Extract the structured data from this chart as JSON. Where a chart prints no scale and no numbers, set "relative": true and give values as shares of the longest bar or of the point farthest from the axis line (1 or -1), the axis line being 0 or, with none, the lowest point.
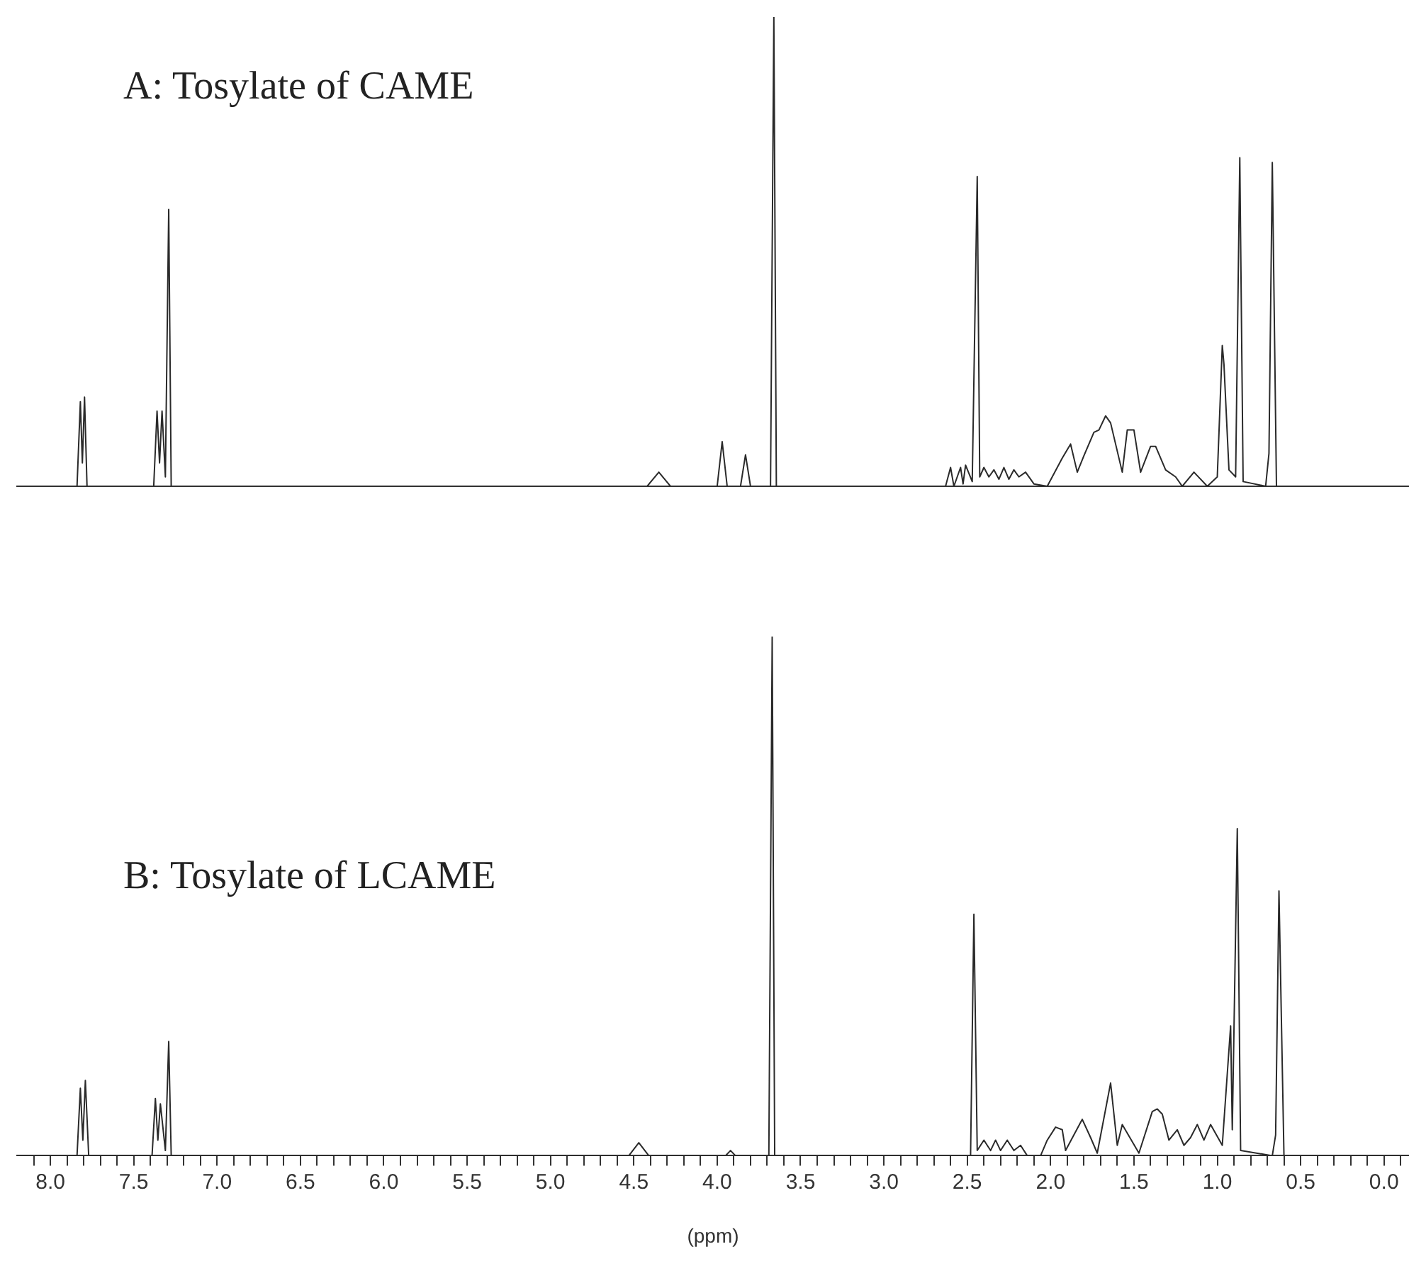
{
  "chart_data": [
    {
      "type": "line",
      "title": "A: Tosylate of CAME",
      "relative": true,
      "xlim": [
        8.2,
        -0.15
      ],
      "tick_labels": false,
      "series": [
        {
          "color": "#2a2a2a",
          "x": [
            8.2,
            7.84,
            7.82,
            7.808,
            7.795,
            7.78,
            7.38,
            7.36,
            7.345,
            7.33,
            7.31,
            7.29,
            7.275,
            4.42,
            4.35,
            4.28,
            4.0,
            3.97,
            3.94,
            3.86,
            3.83,
            3.8,
            3.68,
            3.66,
            3.645,
            2.63,
            2.6,
            2.58,
            2.54,
            2.525,
            2.51,
            2.47,
            2.44,
            2.425,
            2.4,
            2.37,
            2.34,
            2.31,
            2.28,
            2.25,
            2.22,
            2.19,
            2.15,
            2.1,
            2.02,
            1.93,
            1.88,
            1.84,
            1.8,
            1.74,
            1.71,
            1.67,
            1.64,
            1.57,
            1.54,
            1.5,
            1.46,
            1.4,
            1.37,
            1.31,
            1.25,
            1.21,
            1.14,
            1.06,
            1.0,
            0.97,
            0.96,
            0.93,
            0.89,
            0.865,
            0.845,
            0.71,
            0.69,
            0.67,
            0.645,
            -0.15
          ],
          "values": [
            0,
            0,
            0.18,
            0.05,
            0.19,
            0,
            0,
            0.16,
            0.05,
            0.16,
            0.02,
            0.59,
            0,
            0,
            0.03,
            0,
            0,
            0.095,
            0,
            0,
            0.067,
            0,
            0,
            1,
            0,
            0,
            0.04,
            0,
            0.04,
            0.005,
            0.045,
            0.01,
            0.66,
            0.02,
            0.04,
            0.02,
            0.035,
            0.015,
            0.04,
            0.015,
            0.035,
            0.02,
            0.03,
            0.005,
            0,
            0.06,
            0.09,
            0.03,
            0.065,
            0.115,
            0.12,
            0.15,
            0.135,
            0.03,
            0.12,
            0.12,
            0.03,
            0.085,
            0.085,
            0.035,
            0.02,
            0,
            0.03,
            0,
            0.02,
            0.3,
            0.26,
            0.035,
            0.02,
            0.7,
            0.01,
            0,
            0.07,
            0.69,
            0,
            0
          ]
        }
      ]
    },
    {
      "type": "line",
      "title": "B: Tosylate of LCAME",
      "relative": true,
      "xlim": [
        8.2,
        -0.15
      ],
      "xlabel": "(ppm)",
      "xticks": [
        {
          "value": 8.1,
          "label": null
        },
        {
          "value": 8,
          "label": "8.0"
        },
        {
          "value": 7.9,
          "label": null
        },
        {
          "value": 7.8,
          "label": null
        },
        {
          "value": 7.7,
          "label": null
        },
        {
          "value": 7.6,
          "label": null
        },
        7.5,
        {
          "value": 7.4,
          "label": null
        },
        {
          "value": 7.3,
          "label": null
        },
        {
          "value": 7.2,
          "label": null
        },
        {
          "value": 7.1,
          "label": null
        },
        {
          "value": 7,
          "label": "7.0"
        },
        {
          "value": 6.9,
          "label": null
        },
        {
          "value": 6.8,
          "label": null
        },
        {
          "value": 6.7,
          "label": null
        },
        {
          "value": 6.6,
          "label": null
        },
        6.5,
        {
          "value": 6.4,
          "label": null
        },
        {
          "value": 6.3,
          "label": null
        },
        {
          "value": 6.2,
          "label": null
        },
        {
          "value": 6.1,
          "label": null
        },
        {
          "value": 6,
          "label": "6.0"
        },
        {
          "value": 5.9,
          "label": null
        },
        {
          "value": 5.8,
          "label": null
        },
        {
          "value": 5.7,
          "label": null
        },
        {
          "value": 5.6,
          "label": null
        },
        5.5,
        {
          "value": 5.4,
          "label": null
        },
        {
          "value": 5.3,
          "label": null
        },
        {
          "value": 5.2,
          "label": null
        },
        {
          "value": 5.1,
          "label": null
        },
        {
          "value": 5,
          "label": "5.0"
        },
        {
          "value": 4.9,
          "label": null
        },
        {
          "value": 4.8,
          "label": null
        },
        {
          "value": 4.7,
          "label": null
        },
        {
          "value": 4.6,
          "label": null
        },
        4.5,
        {
          "value": 4.4,
          "label": null
        },
        {
          "value": 4.3,
          "label": null
        },
        {
          "value": 4.2,
          "label": null
        },
        {
          "value": 4.1,
          "label": null
        },
        {
          "value": 4,
          "label": "4.0"
        },
        {
          "value": 3.9,
          "label": null
        },
        {
          "value": 3.8,
          "label": null
        },
        {
          "value": 3.7,
          "label": null
        },
        {
          "value": 3.6,
          "label": null
        },
        3.5,
        {
          "value": 3.4,
          "label": null
        },
        {
          "value": 3.3,
          "label": null
        },
        {
          "value": 3.2,
          "label": null
        },
        {
          "value": 3.1,
          "label": null
        },
        {
          "value": 3,
          "label": "3.0"
        },
        {
          "value": 2.9,
          "label": null
        },
        {
          "value": 2.8,
          "label": null
        },
        {
          "value": 2.7,
          "label": null
        },
        {
          "value": 2.6,
          "label": null
        },
        2.5,
        {
          "value": 2.4,
          "label": null
        },
        {
          "value": 2.3,
          "label": null
        },
        {
          "value": 2.2,
          "label": null
        },
        {
          "value": 2.1,
          "label": null
        },
        {
          "value": 2,
          "label": "2.0"
        },
        {
          "value": 1.9,
          "label": null
        },
        {
          "value": 1.8,
          "label": null
        },
        {
          "value": 1.7,
          "label": null
        },
        {
          "value": 1.6,
          "label": null
        },
        1.5,
        {
          "value": 1.4,
          "label": null
        },
        {
          "value": 1.3,
          "label": null
        },
        {
          "value": 1.2,
          "label": null
        },
        {
          "value": 1.1,
          "label": null
        },
        {
          "value": 1,
          "label": "1.0"
        },
        {
          "value": 0.9,
          "label": null
        },
        {
          "value": 0.8,
          "label": null
        },
        {
          "value": 0.7,
          "label": null
        },
        {
          "value": 0.6,
          "label": null
        },
        0.5,
        {
          "value": 0.4,
          "label": null
        },
        {
          "value": 0.3,
          "label": null
        },
        {
          "value": 0.2,
          "label": null
        },
        {
          "value": 0.1,
          "label": null
        },
        {
          "value": 0,
          "label": "0.0"
        },
        {
          "value": -0.1,
          "label": null
        }
      ],
      "series": [
        {
          "color": "#2a2a2a",
          "x": [
            8.2,
            7.84,
            7.82,
            7.805,
            7.79,
            7.77,
            7.39,
            7.37,
            7.355,
            7.34,
            7.31,
            7.29,
            7.275,
            4.53,
            4.47,
            4.41,
            3.95,
            3.92,
            3.89,
            3.69,
            3.67,
            3.655,
            2.48,
            2.46,
            2.44,
            2.4,
            2.36,
            2.33,
            2.3,
            2.26,
            2.22,
            2.18,
            2.14,
            2.06,
            2.02,
            1.97,
            1.93,
            1.91,
            1.81,
            1.76,
            1.72,
            1.64,
            1.6,
            1.57,
            1.47,
            1.39,
            1.36,
            1.33,
            1.29,
            1.24,
            1.2,
            1.16,
            1.12,
            1.08,
            1.04,
            0.97,
            0.92,
            0.91,
            0.9,
            0.88,
            0.86,
            0.67,
            0.65,
            0.63,
            0.6,
            -0.15
          ],
          "values": [
            0,
            0,
            0.13,
            0.03,
            0.145,
            0,
            0,
            0.11,
            0.03,
            0.1,
            0.01,
            0.22,
            0,
            0,
            0.025,
            0,
            0,
            0.01,
            0,
            0,
            1,
            0,
            0,
            0.465,
            0.01,
            0.03,
            0.01,
            0.03,
            0.01,
            0.03,
            0.01,
            0.02,
            0,
            0,
            0.03,
            0.055,
            0.05,
            0.01,
            0.07,
            0.035,
            0.005,
            0.14,
            0.02,
            0.06,
            0.005,
            0.085,
            0.09,
            0.08,
            0.03,
            0.05,
            0.02,
            0.035,
            0.06,
            0.03,
            0.06,
            0.02,
            0.25,
            0.05,
            0.24,
            0.63,
            0.01,
            0,
            0.04,
            0.51,
            0,
            0
          ]
        }
      ]
    }
  ]
}
